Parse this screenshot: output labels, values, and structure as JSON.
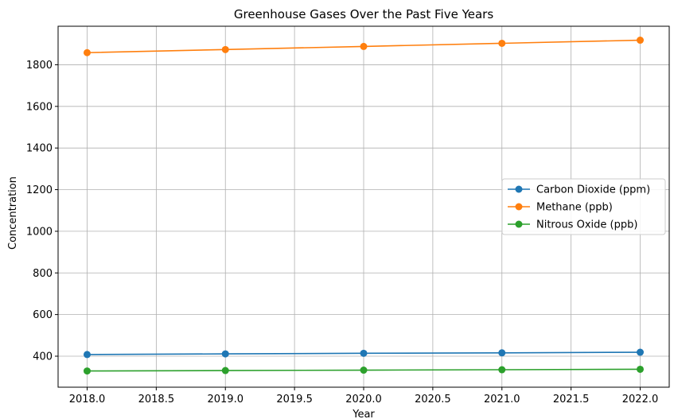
{
  "chart_data": {
    "type": "line",
    "title": "Greenhouse Gases Over the Past Five Years",
    "xlabel": "Year",
    "ylabel": "Concentration",
    "x": [
      2018,
      2019,
      2020,
      2021,
      2022
    ],
    "xlim": [
      2017.79,
      2022.21
    ],
    "ylim": [
      251,
      1985
    ],
    "xticks": [
      2018.0,
      2018.5,
      2019.0,
      2019.5,
      2020.0,
      2020.5,
      2021.0,
      2021.5,
      2022.0
    ],
    "xtick_labels": [
      "2018.0",
      "2018.5",
      "2019.0",
      "2019.5",
      "2020.0",
      "2020.5",
      "2021.0",
      "2021.5",
      "2022.0"
    ],
    "yticks": [
      400,
      600,
      800,
      1000,
      1200,
      1400,
      1600,
      1800
    ],
    "ytick_labels": [
      "400",
      "600",
      "800",
      "1000",
      "1200",
      "1400",
      "1600",
      "1800"
    ],
    "grid": true,
    "legend_position": "center-right",
    "series": [
      {
        "name": "Carbon Dioxide (ppm)",
        "color": "#1f77b4",
        "marker": "circle",
        "values": [
          408,
          411,
          414,
          416,
          419
        ]
      },
      {
        "name": "Methane (ppb)",
        "color": "#ff7f0e",
        "marker": "circle",
        "values": [
          1858,
          1873,
          1888,
          1903,
          1918
        ]
      },
      {
        "name": "Nitrous Oxide (ppb)",
        "color": "#2ca02c",
        "marker": "circle",
        "values": [
          329,
          331,
          333,
          335,
          337
        ]
      }
    ]
  }
}
